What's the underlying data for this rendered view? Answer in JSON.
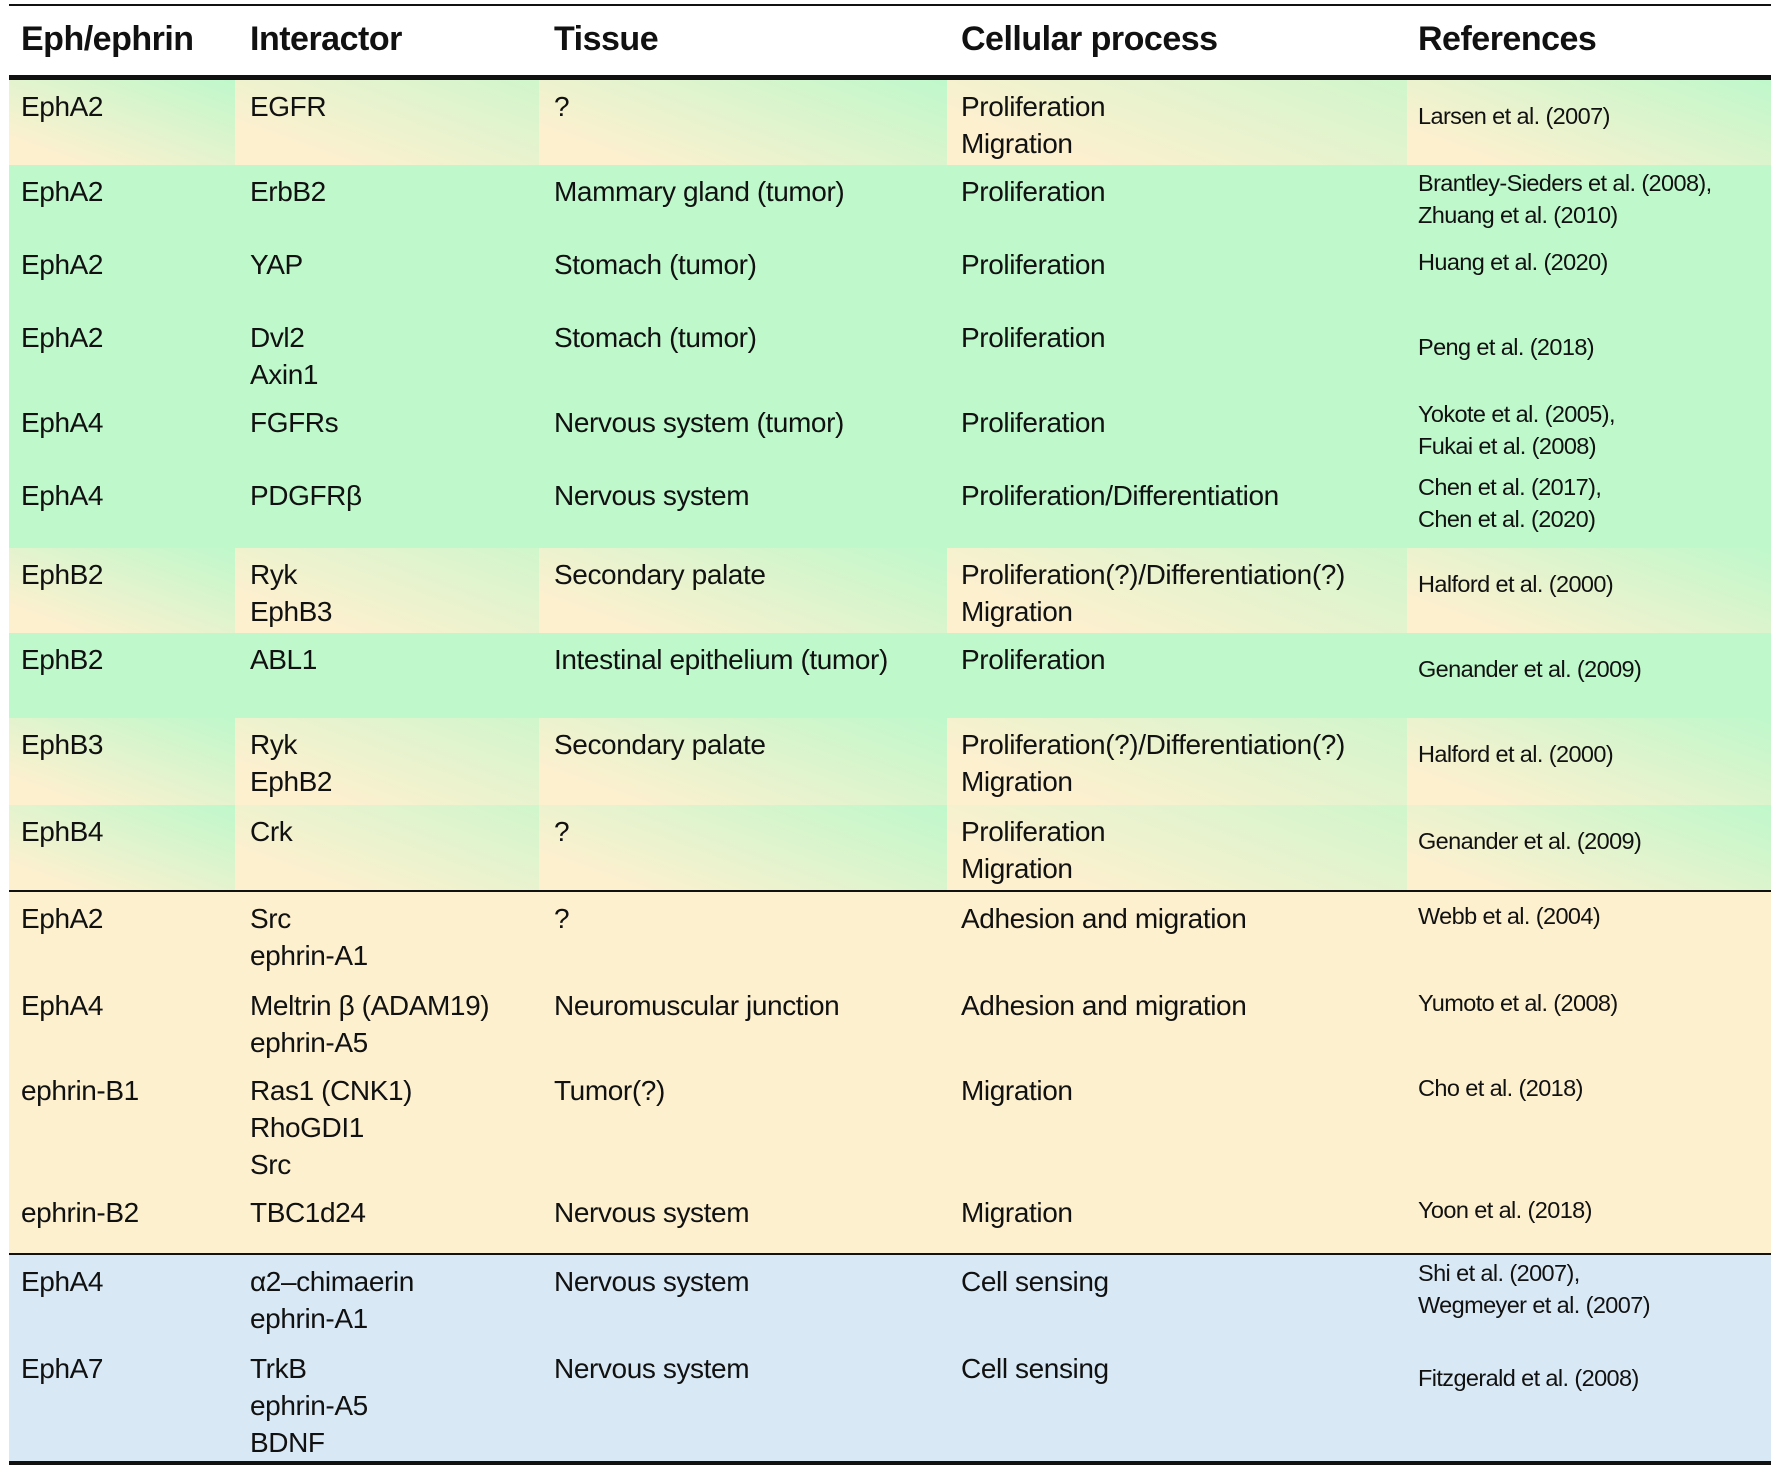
{
  "headers": [
    "Eph/ephrin",
    "Interactor",
    "Tissue",
    "Cellular process",
    "References"
  ],
  "colors": {
    "green": "#bff8cb",
    "cream": "#fdf0cf",
    "blue": "#d8e8f5"
  },
  "rows": [
    {
      "bg": "mixed",
      "cells": [
        [
          "EphA2"
        ],
        [
          "EGFR"
        ],
        [
          "?"
        ],
        [
          "Proliferation",
          "Migration"
        ],
        [
          "Larsen et al. (2007)"
        ]
      ]
    },
    {
      "bg": "green",
      "cells": [
        [
          "EphA2"
        ],
        [
          "ErbB2"
        ],
        [
          "Mammary gland (tumor)"
        ],
        [
          "Proliferation"
        ],
        [
          "Brantley-Sieders et al. (2008),",
          "Zhuang et al. (2010)"
        ]
      ]
    },
    {
      "bg": "green",
      "cells": [
        [
          "EphA2"
        ],
        [
          "YAP"
        ],
        [
          "Stomach (tumor)"
        ],
        [
          "Proliferation"
        ],
        [
          "Huang et al. (2020)"
        ]
      ]
    },
    {
      "bg": "green",
      "cells": [
        [
          "EphA2"
        ],
        [
          "Dvl2",
          "Axin1"
        ],
        [
          "Stomach (tumor)"
        ],
        [
          "Proliferation"
        ],
        [
          "Peng et al. (2018)"
        ]
      ]
    },
    {
      "bg": "green",
      "cells": [
        [
          "EphA4"
        ],
        [
          "FGFRs"
        ],
        [
          "Nervous system (tumor)"
        ],
        [
          "Proliferation"
        ],
        [
          "Yokote et al. (2005),",
          "Fukai et al. (2008)"
        ]
      ]
    },
    {
      "bg": "green",
      "cells": [
        [
          "EphA4"
        ],
        [
          "PDGFRβ"
        ],
        [
          "Nervous system"
        ],
        [
          "Proliferation/Differentiation"
        ],
        [
          "Chen et al. (2017),",
          "Chen et al. (2020)"
        ]
      ]
    },
    {
      "bg": "mixed",
      "cells": [
        [
          "EphB2"
        ],
        [
          "Ryk",
          "EphB3"
        ],
        [
          "Secondary palate"
        ],
        [
          "Proliferation(?)/Differentiation(?)",
          "Migration"
        ],
        [
          "Halford et al. (2000)"
        ]
      ]
    },
    {
      "bg": "green",
      "cells": [
        [
          "EphB2"
        ],
        [
          "ABL1"
        ],
        [
          "Intestinal epithelium (tumor)"
        ],
        [
          "Proliferation"
        ],
        [
          "Genander et al. (2009)"
        ]
      ]
    },
    {
      "bg": "mixed",
      "cells": [
        [
          "EphB3"
        ],
        [
          "Ryk",
          "EphB2"
        ],
        [
          "Secondary palate"
        ],
        [
          "Proliferation(?)/Differentiation(?)",
          "Migration"
        ],
        [
          "Halford et al. (2000)"
        ]
      ]
    },
    {
      "bg": "mixed",
      "cells": [
        [
          "EphB4"
        ],
        [
          "Crk"
        ],
        [
          "?"
        ],
        [
          "Proliferation",
          "Migration"
        ],
        [
          "Genander et al. (2009)"
        ]
      ]
    },
    {
      "bg": "cream",
      "cells": [
        [
          "EphA2"
        ],
        [
          "Src",
          "ephrin-A1"
        ],
        [
          "?"
        ],
        [
          "Adhesion and migration"
        ],
        [
          "Webb et al. (2004)"
        ]
      ]
    },
    {
      "bg": "cream",
      "cells": [
        [
          "EphA4"
        ],
        [
          "Meltrin β (ADAM19)",
          "ephrin-A5"
        ],
        [
          "Neuromuscular junction"
        ],
        [
          "Adhesion and migration"
        ],
        [
          "Yumoto et al. (2008)"
        ]
      ]
    },
    {
      "bg": "cream",
      "cells": [
        [
          "ephrin-B1"
        ],
        [
          "Ras1 (CNK1)",
          "RhoGDI1",
          "Src"
        ],
        [
          "Tumor(?)"
        ],
        [
          "Migration"
        ],
        [
          "Cho et al. (2018)"
        ]
      ]
    },
    {
      "bg": "cream",
      "cells": [
        [
          "ephrin-B2"
        ],
        [
          "TBC1d24"
        ],
        [
          "Nervous system"
        ],
        [
          "Migration"
        ],
        [
          "Yoon et al. (2018)"
        ]
      ]
    },
    {
      "bg": "blue",
      "cells": [
        [
          "EphA4"
        ],
        [
          "α2–chimaerin",
          "ephrin-A1"
        ],
        [
          "Nervous system"
        ],
        [
          "Cell sensing"
        ],
        [
          "Shi et al. (2007),",
          "Wegmeyer et al. (2007)"
        ]
      ]
    },
    {
      "bg": "blue",
      "cells": [
        [
          "EphA7"
        ],
        [
          "TrkB",
          "ephrin-A5",
          "BDNF"
        ],
        [
          "Nervous system"
        ],
        [
          "Cell sensing"
        ],
        [
          "Fitzgerald et al. (2008)"
        ]
      ]
    }
  ]
}
